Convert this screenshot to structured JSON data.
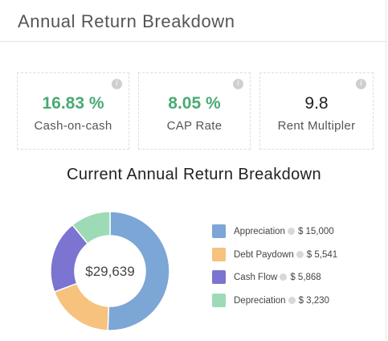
{
  "header": {
    "title": "Annual Return Breakdown"
  },
  "cards": [
    {
      "value": "16.83 %",
      "label": "Cash-on-cash"
    },
    {
      "value": "8.05 %",
      "label": "CAP Rate"
    },
    {
      "value": "9.8",
      "label": "Rent Multipler"
    }
  ],
  "colors": {
    "accent_green": "#4aaa74",
    "appreciation": "#7ba6d6",
    "debt_paydown": "#f6c27e",
    "cash_flow": "#7b74d0",
    "depreciation": "#9ddbb6"
  },
  "chart_data": {
    "type": "pie",
    "title": "Current Annual Return Breakdown",
    "center_label": "$29,639",
    "categories": [
      "Appreciation",
      "Debt Paydown",
      "Cash Flow",
      "Depreciation"
    ],
    "values": [
      15000,
      5541,
      5868,
      3230
    ],
    "value_labels": [
      "$ 15,000",
      "$ 5,541",
      "$ 5,868",
      "$ 3,230"
    ],
    "legend_position": "right"
  }
}
